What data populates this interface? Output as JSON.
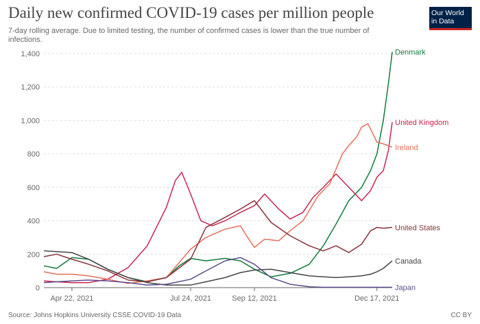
{
  "header": {
    "title": "Daily new confirmed COVID-19 cases per million people",
    "subtitle": "7-day rolling average. Due to limited testing, the number of confirmed cases is lower than the true number of infections."
  },
  "logo": {
    "line1": "Our World",
    "line2": "in Data",
    "bg_color": "#002147",
    "accent_color": "#ce261e"
  },
  "footer": {
    "source": "Source: Johns Hopkins University CSSE COVID-19 Data",
    "license": "CC BY"
  },
  "chart_data": {
    "type": "line",
    "title": "Daily new confirmed COVID-19 cases per million people",
    "ylim": [
      0,
      1400
    ],
    "yticks": [
      0,
      200,
      400,
      600,
      800,
      1000,
      1200,
      1400
    ],
    "ytick_labels": [
      "0",
      "200",
      "400",
      "600",
      "800",
      "1,000",
      "1,200",
      "1,400"
    ],
    "xlim": [
      "2021-03-31",
      "2021-12-29"
    ],
    "xticks": [
      "2021-04-22",
      "2021-07-24",
      "2021-09-12",
      "2021-12-17"
    ],
    "xtick_labels": [
      "Apr 22, 2021",
      "Jul 24, 2021",
      "Sep 12, 2021",
      "Dec 17, 2021"
    ],
    "grid": "horizontal-dashed",
    "legend": "labels at line ends (right)",
    "series": [
      {
        "name": "Denmark",
        "color": "#0f7a3b",
        "x": [
          "2021-03-31",
          "2021-04-10",
          "2021-04-22",
          "2021-05-05",
          "2021-05-20",
          "2021-06-05",
          "2021-06-20",
          "2021-07-05",
          "2021-07-15",
          "2021-07-24",
          "2021-08-05",
          "2021-08-20",
          "2021-09-01",
          "2021-09-12",
          "2021-09-25",
          "2021-10-10",
          "2021-10-25",
          "2021-11-05",
          "2021-11-15",
          "2021-11-25",
          "2021-12-05",
          "2021-12-12",
          "2021-12-17",
          "2021-12-22",
          "2021-12-26",
          "2021-12-29"
        ],
        "y": [
          130,
          115,
          180,
          170,
          110,
          60,
          35,
          60,
          130,
          175,
          160,
          175,
          160,
          110,
          65,
          85,
          140,
          250,
          380,
          520,
          600,
          700,
          800,
          1000,
          1220,
          1410
        ]
      },
      {
        "name": "United Kingdom",
        "color": "#c8254f",
        "x": [
          "2021-03-31",
          "2021-04-10",
          "2021-04-22",
          "2021-05-05",
          "2021-05-20",
          "2021-06-05",
          "2021-06-20",
          "2021-07-05",
          "2021-07-12",
          "2021-07-17",
          "2021-07-24",
          "2021-08-01",
          "2021-08-10",
          "2021-08-20",
          "2021-09-01",
          "2021-09-12",
          "2021-09-20",
          "2021-10-01",
          "2021-10-10",
          "2021-10-20",
          "2021-10-28",
          "2021-11-05",
          "2021-11-15",
          "2021-11-25",
          "2021-12-05",
          "2021-12-12",
          "2021-12-17",
          "2021-12-22",
          "2021-12-26",
          "2021-12-29"
        ],
        "y": [
          40,
          35,
          30,
          30,
          50,
          120,
          250,
          480,
          640,
          690,
          560,
          400,
          370,
          400,
          450,
          490,
          560,
          470,
          410,
          450,
          540,
          600,
          680,
          600,
          520,
          580,
          660,
          700,
          820,
          990
        ]
      },
      {
        "name": "Ireland",
        "color": "#e56e5a",
        "x": [
          "2021-03-31",
          "2021-04-10",
          "2021-04-22",
          "2021-05-05",
          "2021-05-20",
          "2021-06-05",
          "2021-06-20",
          "2021-07-05",
          "2021-07-24",
          "2021-08-05",
          "2021-08-20",
          "2021-09-01",
          "2021-09-05",
          "2021-09-12",
          "2021-09-20",
          "2021-10-01",
          "2021-10-10",
          "2021-10-20",
          "2021-11-01",
          "2021-11-10",
          "2021-11-20",
          "2021-11-25",
          "2021-12-01",
          "2021-12-05",
          "2021-12-10",
          "2021-12-17",
          "2021-12-22",
          "2021-12-29"
        ],
        "y": [
          95,
          80,
          80,
          70,
          50,
          25,
          40,
          60,
          230,
          300,
          350,
          370,
          320,
          240,
          290,
          280,
          340,
          400,
          550,
          620,
          800,
          850,
          900,
          960,
          980,
          870,
          860,
          840
        ]
      },
      {
        "name": "United States",
        "color": "#883039",
        "x": [
          "2021-03-31",
          "2021-04-10",
          "2021-04-22",
          "2021-05-05",
          "2021-05-20",
          "2021-06-05",
          "2021-06-20",
          "2021-07-05",
          "2021-07-24",
          "2021-08-05",
          "2021-08-20",
          "2021-09-01",
          "2021-09-12",
          "2021-09-25",
          "2021-10-10",
          "2021-10-25",
          "2021-11-05",
          "2021-11-15",
          "2021-11-25",
          "2021-12-05",
          "2021-12-12",
          "2021-12-17",
          "2021-12-22",
          "2021-12-29"
        ],
        "y": [
          185,
          200,
          170,
          140,
          100,
          45,
          35,
          60,
          170,
          360,
          420,
          470,
          520,
          390,
          310,
          250,
          220,
          250,
          210,
          260,
          340,
          360,
          355,
          360
        ]
      },
      {
        "name": "Canada",
        "color": "#444444",
        "x": [
          "2021-03-31",
          "2021-04-10",
          "2021-04-22",
          "2021-05-05",
          "2021-05-20",
          "2021-06-05",
          "2021-06-20",
          "2021-07-05",
          "2021-07-24",
          "2021-08-05",
          "2021-08-20",
          "2021-09-01",
          "2021-09-12",
          "2021-09-25",
          "2021-10-10",
          "2021-10-25",
          "2021-11-05",
          "2021-11-15",
          "2021-11-25",
          "2021-12-05",
          "2021-12-12",
          "2021-12-17",
          "2021-12-22",
          "2021-12-29"
        ],
        "y": [
          220,
          215,
          210,
          170,
          110,
          60,
          30,
          15,
          15,
          35,
          60,
          90,
          105,
          110,
          90,
          70,
          65,
          60,
          65,
          70,
          80,
          95,
          115,
          160
        ]
      },
      {
        "name": "Japan",
        "color": "#5b4b8a",
        "x": [
          "2021-03-31",
          "2021-04-10",
          "2021-04-22",
          "2021-05-05",
          "2021-05-20",
          "2021-06-05",
          "2021-06-20",
          "2021-07-05",
          "2021-07-24",
          "2021-08-05",
          "2021-08-20",
          "2021-09-01",
          "2021-09-12",
          "2021-09-25",
          "2021-10-10",
          "2021-10-25",
          "2021-11-05",
          "2021-11-15",
          "2021-11-25",
          "2021-12-05",
          "2021-12-12",
          "2021-12-17",
          "2021-12-22",
          "2021-12-29"
        ],
        "y": [
          30,
          35,
          40,
          45,
          40,
          30,
          15,
          20,
          50,
          100,
          160,
          180,
          140,
          60,
          20,
          5,
          2,
          2,
          2,
          2,
          2,
          2,
          2,
          2
        ]
      }
    ]
  }
}
